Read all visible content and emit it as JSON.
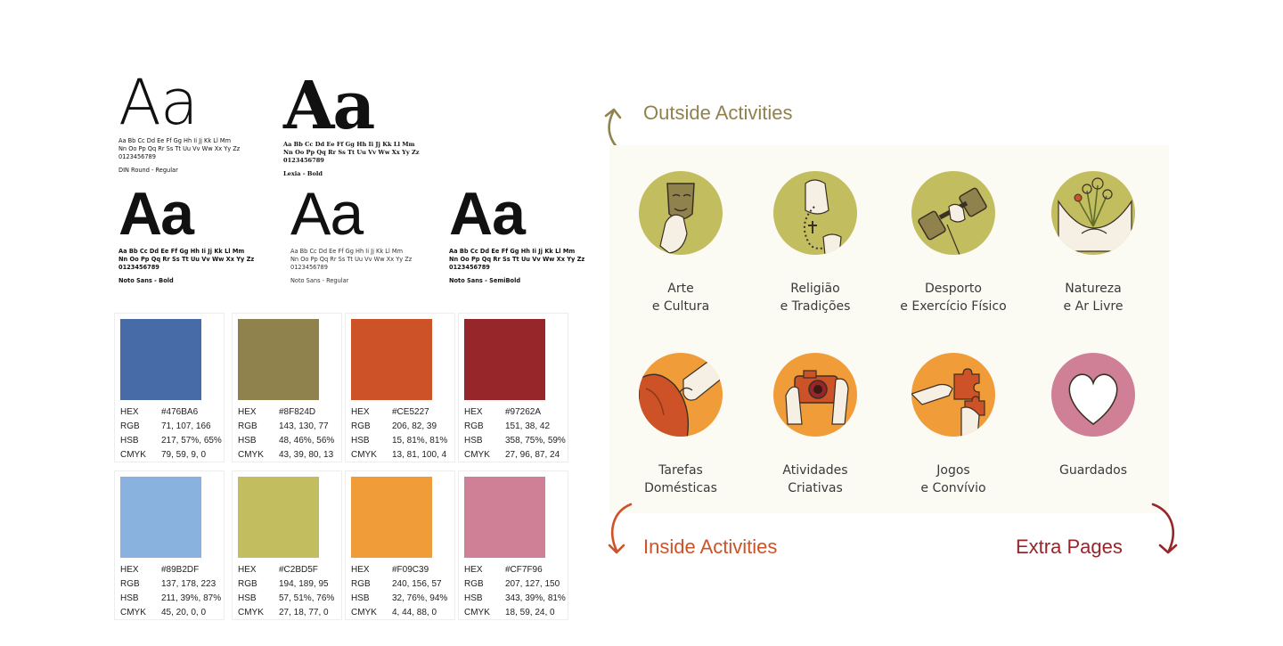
{
  "typography": [
    {
      "sample": "Aa",
      "lines": [
        "Aa Bb Cc Dd Ee Ff Gg Hh Ii Jj Kk Ll Mm",
        "Nn Oo Pp Qq Rr Ss Tt Uu Vv Ww Xx Yy Zz",
        "0123456789"
      ],
      "name": "DIN Round - Regular"
    },
    {
      "sample": "Aa",
      "lines": [
        "Aa Bb Cc Dd Ee Ff Gg Hh Ii Jj Kk Ll Mm",
        "Nn Oo Pp Qq Rr Ss Tt Uu Vv Ww Xx Yy Zz",
        "0123456789"
      ],
      "name": "Lexia - Bold"
    },
    {
      "sample": "Aa",
      "lines": [
        "Aa Bb Cc Dd Ee Ff Gg Hh Ii Jj Kk Ll Mm",
        "Nn Oo Pp Qq Rr Ss Tt Uu Vv Ww Xx Yy Zz",
        "0123456789"
      ],
      "name": "Noto Sans - Bold"
    },
    {
      "sample": "Aa",
      "lines": [
        "Aa Bb Cc Dd Ee Ff Gg Hh Ii Jj Kk Ll Mm",
        "Nn Oo Pp Qq Rr Ss Tt Uu Vv Ww Xx Yy Zz",
        "0123456789"
      ],
      "name": "Noto Sans - Regular"
    },
    {
      "sample": "Aa",
      "lines": [
        "Aa Bb Cc Dd Ee Ff Gg Hh Ii Jj Kk Ll Mm",
        "Nn Oo Pp Qq Rr Ss Tt Uu Vv Ww Xx Yy Zz",
        "0123456789"
      ],
      "name": "Noto Sans - SemiBold"
    }
  ],
  "swatches": [
    {
      "color": "#476BA6",
      "hex": "#476BA6",
      "rgb": "71, 107, 166",
      "hsb": "217, 57%, 65%",
      "cmyk": "79, 59, 9, 0"
    },
    {
      "color": "#8F824D",
      "hex": "#8F824D",
      "rgb": "143, 130, 77",
      "hsb": "48, 46%, 56%",
      "cmyk": "43, 39, 80, 13"
    },
    {
      "color": "#CE5227",
      "hex": "#CE5227",
      "rgb": "206, 82, 39",
      "hsb": "15, 81%, 81%",
      "cmyk": "13, 81, 100, 4"
    },
    {
      "color": "#97262A",
      "hex": "#97262A",
      "rgb": "151, 38, 42",
      "hsb": "358, 75%, 59%",
      "cmyk": "27, 96, 87, 24"
    },
    {
      "color": "#89B2DF",
      "hex": "#89B2DF",
      "rgb": "137, 178, 223",
      "hsb": "211, 39%, 87%",
      "cmyk": "45, 20, 0, 0"
    },
    {
      "color": "#C2BD5F",
      "hex": "#C2BD5F",
      "rgb": "194, 189, 95",
      "hsb": "57, 51%, 76%",
      "cmyk": "27, 18, 77, 0"
    },
    {
      "color": "#F09C39",
      "hex": "#F09C39",
      "rgb": "240, 156, 57",
      "hsb": "32, 76%, 94%",
      "cmyk": "4, 44, 88, 0"
    },
    {
      "color": "#CF7F96",
      "hex": "#CF7F96",
      "rgb": "207, 127, 150",
      "hsb": "343, 39%, 81%",
      "cmyk": "18, 59, 24, 0"
    }
  ],
  "swatch_keys": {
    "hex": "HEX",
    "rgb": "RGB",
    "hsb": "HSB",
    "cmyk": "CMYK"
  },
  "headings": {
    "outside": "Outside Activities",
    "inside": "Inside Activities",
    "extra": "Extra Pages"
  },
  "heading_colors": {
    "outside": "#8F824D",
    "inside": "#CE5227",
    "extra": "#97262A"
  },
  "outside_activities": [
    {
      "line1": "Arte",
      "line2": "e Cultura",
      "icon": "theatre-mask-icon"
    },
    {
      "line1": "Religião",
      "line2": "e Tradições",
      "icon": "rosary-icon"
    },
    {
      "line1": "Desporto",
      "line2": "e Exercício Físico",
      "icon": "dumbbell-icon"
    },
    {
      "line1": "Natureza",
      "line2": "e  Ar Livre",
      "icon": "flowers-icon"
    }
  ],
  "inside_activities": [
    {
      "line1": "Tarefas",
      "line2": "Domésticas",
      "icon": "cleaning-cloth-icon"
    },
    {
      "line1": "Atividades",
      "line2": "Criativas",
      "icon": "camera-icon"
    },
    {
      "line1": "Jogos",
      "line2": "e Convívio",
      "icon": "puzzle-icon"
    },
    {
      "line1": "Guardados",
      "line2": "",
      "icon": "heart-icon"
    }
  ],
  "circle_colors": {
    "outside": "#C2BD5F",
    "inside": "#F09C39",
    "extra": "#CF7F96"
  }
}
